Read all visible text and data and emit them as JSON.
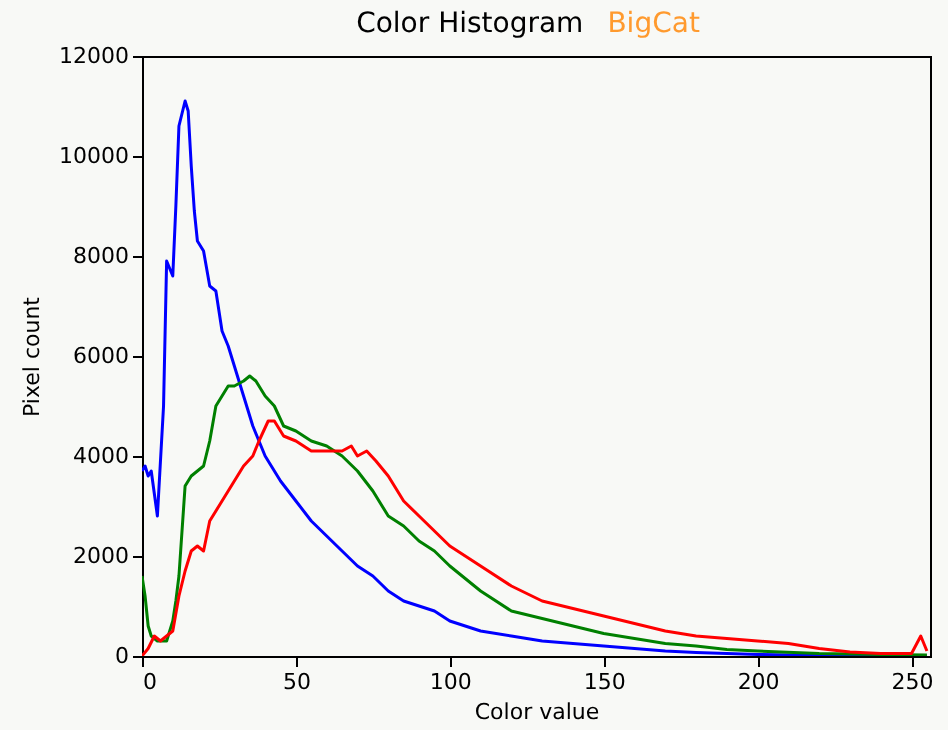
{
  "chart_data": {
    "type": "line",
    "title": "Color Histogram",
    "annotations": [
      "BigCat"
    ],
    "xlabel": "Color value",
    "ylabel": "Pixel count",
    "xlim": [
      0,
      256
    ],
    "xticks": [
      0,
      50,
      100,
      150,
      200,
      250
    ],
    "ylim": [
      0,
      12000
    ],
    "yticks": [
      0,
      2000,
      4000,
      6000,
      8000,
      10000,
      12000
    ],
    "grid": false,
    "series": [
      {
        "color": "#0000ff",
        "x": [
          0,
          1,
          2,
          3,
          5,
          7,
          8,
          10,
          11,
          12,
          14,
          15,
          16,
          17,
          18,
          20,
          22,
          24,
          26,
          28,
          30,
          33,
          36,
          40,
          45,
          50,
          55,
          60,
          65,
          70,
          75,
          80,
          85,
          90,
          95,
          100,
          110,
          120,
          130,
          140,
          150,
          160,
          170,
          180,
          200,
          220,
          255
        ],
        "values": [
          3700,
          3800,
          3600,
          3700,
          2800,
          5000,
          7900,
          7600,
          9000,
          10600,
          11100,
          10900,
          9800,
          8900,
          8300,
          8100,
          7400,
          7300,
          6500,
          6200,
          5800,
          5200,
          4600,
          4000,
          3500,
          3100,
          2700,
          2400,
          2100,
          1800,
          1600,
          1300,
          1100,
          1000,
          900,
          700,
          500,
          400,
          300,
          250,
          200,
          150,
          100,
          70,
          30,
          10,
          0
        ]
      },
      {
        "color": "#008000",
        "x": [
          0,
          1,
          2,
          3,
          5,
          8,
          10,
          11,
          12,
          14,
          16,
          18,
          20,
          22,
          24,
          26,
          28,
          30,
          33,
          35,
          37,
          40,
          43,
          46,
          50,
          55,
          60,
          65,
          70,
          75,
          80,
          85,
          90,
          95,
          100,
          110,
          120,
          130,
          140,
          150,
          160,
          170,
          180,
          190,
          200,
          220,
          240,
          255
        ],
        "values": [
          1600,
          1200,
          600,
          400,
          300,
          300,
          700,
          1100,
          1600,
          3400,
          3600,
          3700,
          3800,
          4300,
          5000,
          5200,
          5400,
          5400,
          5500,
          5600,
          5500,
          5200,
          5000,
          4600,
          4500,
          4300,
          4200,
          4000,
          3700,
          3300,
          2800,
          2600,
          2300,
          2100,
          1800,
          1300,
          900,
          750,
          600,
          450,
          350,
          250,
          200,
          130,
          100,
          50,
          30,
          20
        ]
      },
      {
        "color": "#ff0000",
        "x": [
          0,
          2,
          4,
          6,
          8,
          10,
          12,
          14,
          16,
          18,
          20,
          22,
          25,
          28,
          30,
          33,
          36,
          38,
          41,
          43,
          46,
          50,
          55,
          60,
          65,
          68,
          70,
          73,
          76,
          80,
          85,
          90,
          95,
          100,
          110,
          120,
          130,
          140,
          150,
          160,
          170,
          180,
          190,
          200,
          210,
          220,
          230,
          240,
          250,
          253,
          255
        ],
        "values": [
          0,
          150,
          400,
          300,
          400,
          500,
          1200,
          1700,
          2100,
          2200,
          2100,
          2700,
          3000,
          3300,
          3500,
          3800,
          4000,
          4300,
          4700,
          4700,
          4400,
          4300,
          4100,
          4100,
          4100,
          4200,
          4000,
          4100,
          3900,
          3600,
          3100,
          2800,
          2500,
          2200,
          1800,
          1400,
          1100,
          950,
          800,
          650,
          500,
          400,
          350,
          300,
          250,
          150,
          80,
          50,
          50,
          400,
          100
        ]
      }
    ]
  }
}
